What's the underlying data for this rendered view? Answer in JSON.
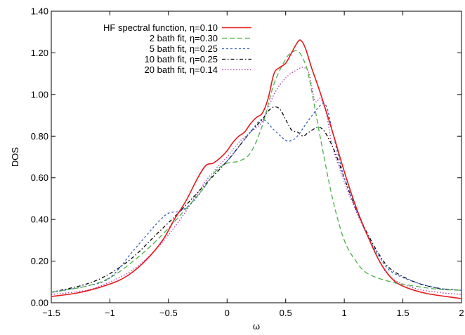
{
  "chart_data": {
    "type": "line",
    "xlabel": "ω",
    "ylabel": "DOS",
    "xlim": [
      -1.5,
      2
    ],
    "ylim": [
      0,
      1.4
    ],
    "x_ticks": [
      "−1.5",
      "−1",
      "−0.5",
      "0",
      "0.5",
      "1",
      "1.5",
      "2"
    ],
    "x_tick_values": [
      -1.5,
      -1,
      -0.5,
      0,
      0.5,
      1,
      1.5,
      2
    ],
    "y_ticks": [
      "0.00",
      "0.20",
      "0.40",
      "0.60",
      "0.80",
      "1.00",
      "1.20",
      "1.40"
    ],
    "y_tick_values": [
      0,
      0.2,
      0.4,
      0.6,
      0.8,
      1.0,
      1.2,
      1.4
    ],
    "grid": false,
    "legend_position": "top-left",
    "series": [
      {
        "name": "HF spectral function, η=0.10",
        "color": "#e41a1c",
        "dash": "solid",
        "x": [
          -1.5,
          -1.25,
          -1.0,
          -0.85,
          -0.7,
          -0.55,
          -0.45,
          -0.35,
          -0.25,
          -0.18,
          -0.12,
          -0.05,
          0.0,
          0.05,
          0.1,
          0.15,
          0.2,
          0.25,
          0.3,
          0.35,
          0.4,
          0.45,
          0.5,
          0.55,
          0.6,
          0.63,
          0.67,
          0.72,
          0.8,
          0.9,
          1.0,
          1.1,
          1.2,
          1.3,
          1.4,
          1.5,
          1.7,
          2.0
        ],
        "y": [
          0.03,
          0.05,
          0.09,
          0.13,
          0.2,
          0.3,
          0.4,
          0.49,
          0.6,
          0.66,
          0.67,
          0.7,
          0.73,
          0.77,
          0.8,
          0.82,
          0.86,
          0.89,
          0.91,
          0.98,
          1.1,
          1.13,
          1.15,
          1.2,
          1.25,
          1.26,
          1.22,
          1.13,
          1.0,
          0.82,
          0.63,
          0.46,
          0.32,
          0.2,
          0.12,
          0.08,
          0.045,
          0.02
        ]
      },
      {
        "name": "2 bath fit, η=0.30",
        "color": "#4daf4a",
        "dash": "long-dash",
        "x": [
          -1.5,
          -1.2,
          -1.0,
          -0.8,
          -0.6,
          -0.4,
          -0.2,
          -0.1,
          0.0,
          0.1,
          0.2,
          0.3,
          0.4,
          0.5,
          0.55,
          0.6,
          0.65,
          0.7,
          0.8,
          0.9,
          1.0,
          1.1,
          1.2,
          1.4,
          1.6,
          1.8,
          2.0
        ],
        "y": [
          0.05,
          0.08,
          0.12,
          0.2,
          0.3,
          0.42,
          0.55,
          0.63,
          0.67,
          0.68,
          0.72,
          0.85,
          1.05,
          1.17,
          1.2,
          1.21,
          1.17,
          1.08,
          0.78,
          0.5,
          0.3,
          0.2,
          0.14,
          0.1,
          0.08,
          0.065,
          0.06
        ]
      },
      {
        "name": "5 bath fit, η=0.25",
        "color": "#3b5fc0",
        "dash": "short-dash",
        "x": [
          -1.5,
          -1.2,
          -1.0,
          -0.8,
          -0.6,
          -0.5,
          -0.4,
          -0.3,
          -0.2,
          -0.1,
          0.0,
          0.1,
          0.2,
          0.3,
          0.4,
          0.5,
          0.55,
          0.6,
          0.7,
          0.8,
          0.85,
          0.9,
          1.0,
          1.1,
          1.2,
          1.3,
          1.4,
          1.6,
          1.8,
          2.0
        ],
        "y": [
          0.05,
          0.08,
          0.12,
          0.25,
          0.38,
          0.43,
          0.44,
          0.48,
          0.55,
          0.63,
          0.68,
          0.75,
          0.82,
          0.88,
          0.83,
          0.78,
          0.78,
          0.8,
          0.88,
          0.95,
          0.94,
          0.82,
          0.6,
          0.45,
          0.32,
          0.22,
          0.15,
          0.1,
          0.07,
          0.06
        ]
      },
      {
        "name": "10 bath fit, η=0.25",
        "color": "#000000",
        "dash": "dot-dash",
        "x": [
          -1.5,
          -1.2,
          -1.0,
          -0.8,
          -0.6,
          -0.4,
          -0.2,
          0.0,
          0.1,
          0.2,
          0.3,
          0.35,
          0.4,
          0.45,
          0.5,
          0.55,
          0.6,
          0.65,
          0.7,
          0.8,
          0.9,
          1.0,
          1.1,
          1.2,
          1.3,
          1.4,
          1.6,
          1.8,
          2.0
        ],
        "y": [
          0.05,
          0.09,
          0.14,
          0.22,
          0.33,
          0.44,
          0.56,
          0.68,
          0.75,
          0.82,
          0.88,
          0.92,
          0.94,
          0.93,
          0.88,
          0.83,
          0.82,
          0.8,
          0.82,
          0.84,
          0.75,
          0.6,
          0.45,
          0.33,
          0.23,
          0.16,
          0.1,
          0.07,
          0.06
        ]
      },
      {
        "name": "20 bath fit, η=0.14",
        "color": "#b040b0",
        "dash": "dotted",
        "x": [
          -1.5,
          -1.2,
          -1.0,
          -0.8,
          -0.6,
          -0.4,
          -0.2,
          -0.1,
          0.0,
          0.1,
          0.2,
          0.3,
          0.4,
          0.5,
          0.6,
          0.65,
          0.7,
          0.75,
          0.8,
          0.85,
          0.9,
          1.0,
          1.1,
          1.2,
          1.3,
          1.4,
          1.6,
          1.8,
          2.0
        ],
        "y": [
          0.04,
          0.06,
          0.1,
          0.16,
          0.26,
          0.4,
          0.57,
          0.64,
          0.7,
          0.77,
          0.82,
          0.87,
          1.0,
          1.08,
          1.12,
          1.13,
          1.1,
          0.97,
          0.98,
          0.9,
          0.75,
          0.58,
          0.44,
          0.32,
          0.2,
          0.12,
          0.07,
          0.05,
          0.04
        ]
      }
    ]
  }
}
